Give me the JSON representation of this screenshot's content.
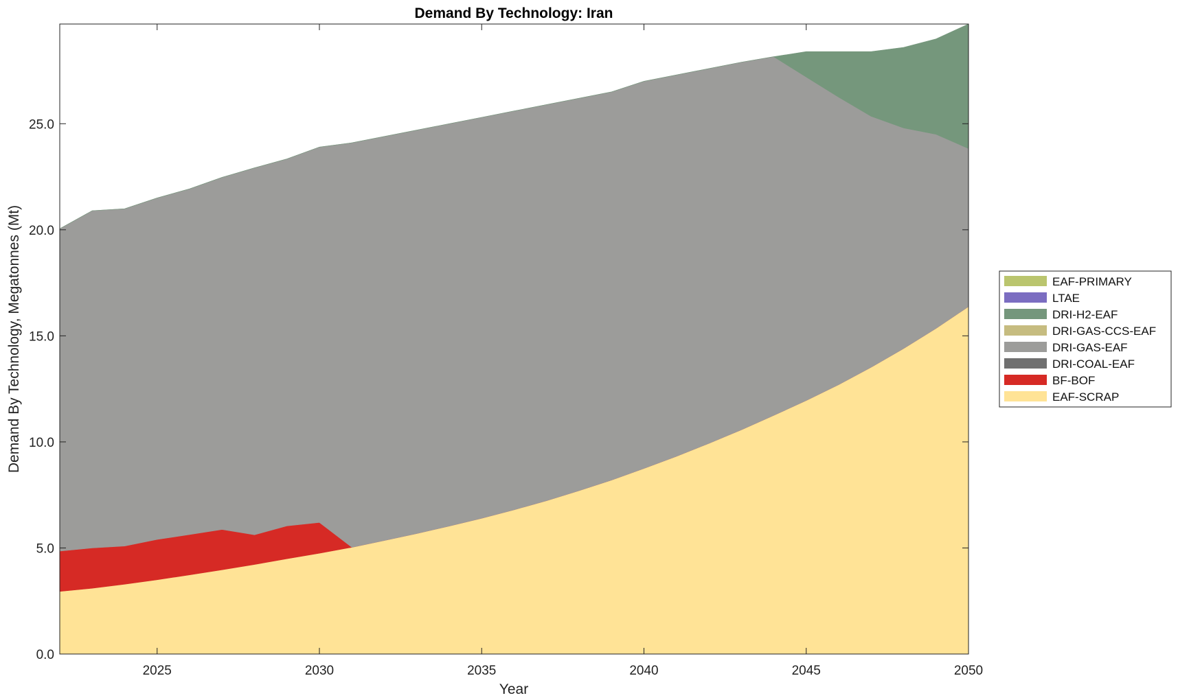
{
  "chart_data": {
    "type": "area",
    "stacked": true,
    "title": "Demand By Technology: Iran",
    "xlabel": "Year",
    "ylabel": "Demand By Technology, Megatonnes (Mt)",
    "xlim": [
      2022,
      2050
    ],
    "ylim": [
      0,
      29.7
    ],
    "x_ticks": [
      2025,
      2030,
      2035,
      2040,
      2045,
      2050
    ],
    "y_ticks": [
      0.0,
      5.0,
      10.0,
      15.0,
      20.0,
      25.0
    ],
    "y_tick_labels": [
      "0.0",
      "5.0",
      "10.0",
      "15.0",
      "20.0",
      "25.0"
    ],
    "grid": false,
    "legend_position": "right",
    "x": [
      2022,
      2023,
      2024,
      2025,
      2026,
      2027,
      2028,
      2029,
      2030,
      2031,
      2032,
      2033,
      2034,
      2035,
      2036,
      2037,
      2038,
      2039,
      2040,
      2041,
      2042,
      2043,
      2044,
      2045,
      2046,
      2047,
      2048,
      2049,
      2050
    ],
    "series": [
      {
        "name": "EAF-SCRAP",
        "color": "#ffe396",
        "values": [
          2.95,
          3.1,
          3.29,
          3.5,
          3.73,
          3.97,
          4.22,
          4.49,
          4.75,
          5.03,
          5.35,
          5.68,
          6.03,
          6.4,
          6.8,
          7.23,
          7.7,
          8.2,
          8.75,
          9.32,
          9.93,
          10.57,
          11.25,
          11.95,
          12.7,
          13.52,
          14.4,
          15.35,
          16.38
        ]
      },
      {
        "name": "BF-BOF",
        "color": "#d62a25",
        "values": [
          1.9,
          1.9,
          1.8,
          1.9,
          1.9,
          1.9,
          1.4,
          1.55,
          1.45,
          0,
          0,
          0,
          0,
          0,
          0,
          0,
          0,
          0,
          0,
          0,
          0,
          0,
          0,
          0,
          0,
          0,
          0,
          0,
          0
        ]
      },
      {
        "name": "DRI-COAL-EAF",
        "color": "#707070",
        "values": [
          0,
          0,
          0,
          0,
          0,
          0,
          0,
          0,
          0,
          0,
          0,
          0,
          0,
          0,
          0,
          0,
          0,
          0,
          0,
          0,
          0,
          0,
          0,
          0,
          0,
          0,
          0,
          0,
          0
        ]
      },
      {
        "name": "DRI-GAS-EAF",
        "color": "#9c9c9a",
        "values": [
          15.2,
          15.9,
          15.9,
          16.1,
          16.3,
          16.6,
          17.3,
          17.3,
          17.7,
          19.07,
          19.05,
          19.02,
          18.97,
          18.9,
          18.8,
          18.67,
          18.5,
          18.3,
          18.25,
          17.98,
          17.67,
          17.33,
          16.91,
          15.25,
          13.55,
          11.83,
          10.4,
          9.15,
          7.45
        ]
      },
      {
        "name": "DRI-GAS-CCS-EAF",
        "color": "#c6bc80",
        "values": [
          0,
          0,
          0,
          0,
          0,
          0,
          0,
          0,
          0,
          0,
          0,
          0,
          0,
          0,
          0,
          0,
          0,
          0,
          0,
          0,
          0,
          0,
          0,
          0,
          0,
          0,
          0,
          0,
          0
        ]
      },
      {
        "name": "DRI-H2-EAF",
        "color": "#75977c",
        "values": [
          0,
          0,
          0,
          0,
          0,
          0,
          0,
          0,
          0,
          0,
          0,
          0,
          0,
          0,
          0,
          0,
          0,
          0,
          0,
          0,
          0,
          0,
          0,
          1.2,
          2.15,
          3.05,
          3.8,
          4.5,
          5.87
        ]
      },
      {
        "name": "LTAE",
        "color": "#7b6dc1",
        "values": [
          0,
          0,
          0,
          0,
          0,
          0,
          0,
          0,
          0,
          0,
          0,
          0,
          0,
          0,
          0,
          0,
          0,
          0,
          0,
          0,
          0,
          0,
          0,
          0,
          0,
          0,
          0,
          0,
          0
        ]
      },
      {
        "name": "EAF-PRIMARY",
        "color": "#bac56e",
        "values": [
          0,
          0,
          0,
          0,
          0,
          0,
          0,
          0,
          0,
          0,
          0,
          0,
          0,
          0,
          0,
          0,
          0,
          0,
          0,
          0,
          0,
          0,
          0,
          0,
          0,
          0,
          0,
          0,
          0
        ]
      }
    ],
    "legend_order": [
      "EAF-PRIMARY",
      "LTAE",
      "DRI-H2-EAF",
      "DRI-GAS-CCS-EAF",
      "DRI-GAS-EAF",
      "DRI-COAL-EAF",
      "BF-BOF",
      "EAF-SCRAP"
    ]
  }
}
